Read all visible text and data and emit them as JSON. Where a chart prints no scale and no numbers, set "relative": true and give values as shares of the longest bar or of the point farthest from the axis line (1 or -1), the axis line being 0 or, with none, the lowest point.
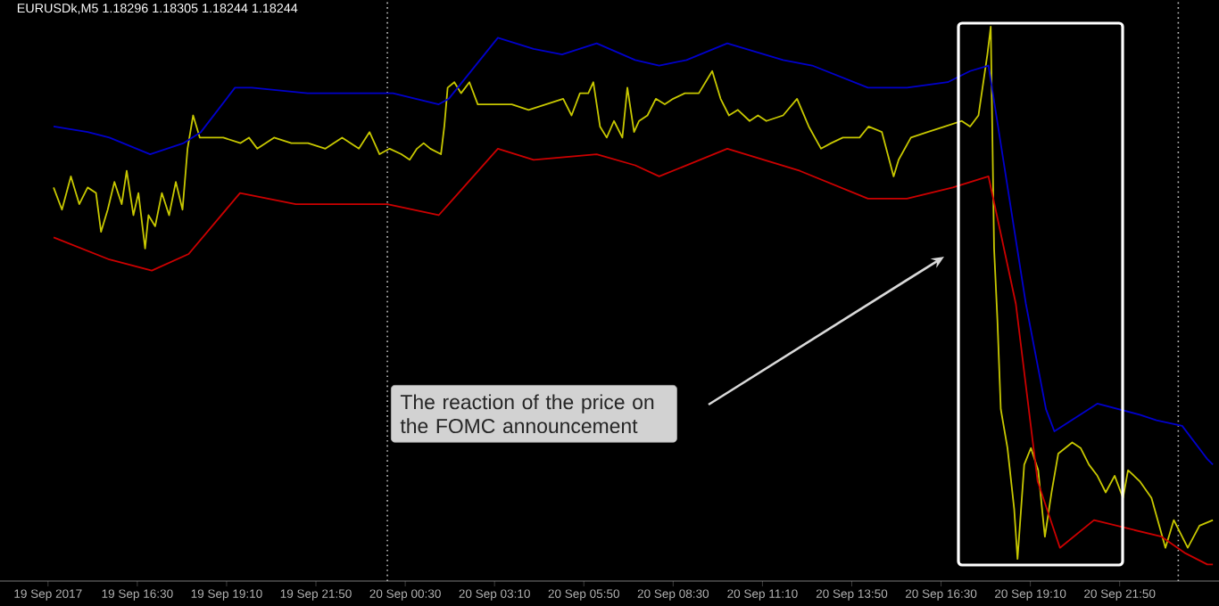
{
  "chart_data": {
    "type": "line",
    "title": "EURUSDk,M5  1.18296 1.18305 1.18244 1.18244",
    "relative": true,
    "marker": "none",
    "line_style": "solid",
    "xlim": [
      "2017-09-19T12:24",
      "2017-09-21T00:48"
    ],
    "xticks": [
      {
        "value": "2017-09-19T13:50",
        "label": "19 Sep 2017"
      },
      {
        "value": "2017-09-19T16:30",
        "label": "19 Sep 16:30"
      },
      {
        "value": "2017-09-19T19:10",
        "label": "19 Sep 19:10"
      },
      {
        "value": "2017-09-19T21:50",
        "label": "19 Sep 21:50"
      },
      {
        "value": "2017-09-20T00:30",
        "label": "20 Sep 00:30"
      },
      {
        "value": "2017-09-20T03:10",
        "label": "20 Sep 03:10"
      },
      {
        "value": "2017-09-20T05:50",
        "label": "20 Sep 05:50"
      },
      {
        "value": "2017-09-20T08:30",
        "label": "20 Sep 08:30"
      },
      {
        "value": "2017-09-20T11:10",
        "label": "20 Sep 11:10"
      },
      {
        "value": "2017-09-20T13:50",
        "label": "20 Sep 13:50"
      },
      {
        "value": "2017-09-20T16:30",
        "label": "20 Sep 16:30"
      },
      {
        "value": "2017-09-20T19:10",
        "label": "20 Sep 19:10"
      },
      {
        "value": "2017-09-20T21:50",
        "label": "20 Sep 21:50"
      }
    ],
    "series": [
      {
        "color": "#c8c800",
        "x": [
          "2017-09-19T14:00",
          "2017-09-19T14:15",
          "2017-09-19T14:31",
          "2017-09-19T14:46",
          "2017-09-19T15:01",
          "2017-09-19T15:16",
          "2017-09-19T15:25",
          "2017-09-19T15:37",
          "2017-09-19T15:49",
          "2017-09-19T16:02",
          "2017-09-19T16:11",
          "2017-09-19T16:23",
          "2017-09-19T16:32",
          "2017-09-19T16:44",
          "2017-09-19T16:50",
          "2017-09-19T17:02",
          "2017-09-19T17:14",
          "2017-09-19T17:27",
          "2017-09-19T17:39",
          "2017-09-19T17:51",
          "2017-09-19T18:00",
          "2017-09-19T18:10",
          "2017-09-19T18:22",
          "2017-09-19T18:34",
          "2017-09-19T18:49",
          "2017-09-19T19:04",
          "2017-09-19T19:35",
          "2017-09-19T19:50",
          "2017-09-19T20:05",
          "2017-09-19T20:35",
          "2017-09-19T21:06",
          "2017-09-19T21:36",
          "2017-09-19T22:07",
          "2017-09-19T22:37",
          "2017-09-19T23:07",
          "2017-09-19T23:26",
          "2017-09-19T23:44",
          "2017-09-20T00:02",
          "2017-09-20T00:23",
          "2017-09-20T00:38",
          "2017-09-20T00:51",
          "2017-09-20T01:03",
          "2017-09-20T01:15",
          "2017-09-20T01:34",
          "2017-09-20T01:40",
          "2017-09-20T01:46",
          "2017-09-20T01:58",
          "2017-09-20T02:10",
          "2017-09-20T02:25",
          "2017-09-20T02:40",
          "2017-09-20T03:11",
          "2017-09-20T03:41",
          "2017-09-20T04:11",
          "2017-09-20T04:42",
          "2017-09-20T05:13",
          "2017-09-20T05:28",
          "2017-09-20T05:43",
          "2017-09-20T05:58",
          "2017-09-20T06:07",
          "2017-09-20T06:19",
          "2017-09-20T06:31",
          "2017-09-20T06:44",
          "2017-09-20T06:59",
          "2017-09-20T07:08",
          "2017-09-20T07:20",
          "2017-09-20T07:29",
          "2017-09-20T07:44",
          "2017-09-20T07:59",
          "2017-09-20T08:15",
          "2017-09-20T08:30",
          "2017-09-20T08:51",
          "2017-09-20T09:16",
          "2017-09-20T09:40",
          "2017-09-20T09:55",
          "2017-09-20T10:10",
          "2017-09-20T10:26",
          "2017-09-20T10:47",
          "2017-09-20T11:02",
          "2017-09-20T11:17",
          "2017-09-20T11:47",
          "2017-09-20T12:12",
          "2017-09-20T12:33",
          "2017-09-20T12:55",
          "2017-09-20T13:13",
          "2017-09-20T13:34",
          "2017-09-20T13:49",
          "2017-09-20T14:04",
          "2017-09-20T14:20",
          "2017-09-20T14:44",
          "2017-09-20T15:05",
          "2017-09-20T15:14",
          "2017-09-20T15:36",
          "2017-09-20T16:06",
          "2017-09-20T16:37",
          "2017-09-20T17:07",
          "2017-09-20T17:22",
          "2017-09-20T17:37",
          "2017-09-20T17:53",
          "2017-09-20T17:59",
          "2017-09-20T18:05",
          "2017-09-20T18:11",
          "2017-09-20T18:17",
          "2017-09-20T18:29",
          "2017-09-20T18:41",
          "2017-09-20T18:47",
          "2017-09-20T18:59",
          "2017-09-20T19:11",
          "2017-09-20T19:24",
          "2017-09-20T19:36",
          "2017-09-20T19:48",
          "2017-09-20T20:00",
          "2017-09-20T20:25",
          "2017-09-20T20:40",
          "2017-09-20T20:55",
          "2017-09-20T21:10",
          "2017-09-20T21:25",
          "2017-09-20T21:41",
          "2017-09-20T21:56",
          "2017-09-20T22:05",
          "2017-09-20T22:26",
          "2017-09-20T22:47",
          "2017-09-20T23:12",
          "2017-09-20T23:27",
          "2017-09-20T23:52",
          "2017-09-21T00:13",
          "2017-09-21T00:37"
        ],
        "values": [
          0.71,
          0.67,
          0.73,
          0.68,
          0.71,
          0.7,
          0.63,
          0.67,
          0.72,
          0.68,
          0.74,
          0.66,
          0.7,
          0.6,
          0.66,
          0.64,
          0.7,
          0.66,
          0.72,
          0.67,
          0.78,
          0.84,
          0.8,
          0.8,
          0.8,
          0.8,
          0.79,
          0.8,
          0.78,
          0.8,
          0.79,
          0.79,
          0.78,
          0.8,
          0.78,
          0.81,
          0.77,
          0.78,
          0.77,
          0.76,
          0.78,
          0.79,
          0.78,
          0.77,
          0.82,
          0.89,
          0.9,
          0.88,
          0.9,
          0.86,
          0.86,
          0.86,
          0.85,
          0.86,
          0.87,
          0.84,
          0.88,
          0.88,
          0.9,
          0.82,
          0.8,
          0.83,
          0.8,
          0.89,
          0.81,
          0.83,
          0.84,
          0.87,
          0.86,
          0.87,
          0.88,
          0.88,
          0.92,
          0.87,
          0.84,
          0.85,
          0.83,
          0.84,
          0.83,
          0.84,
          0.87,
          0.82,
          0.78,
          0.79,
          0.8,
          0.8,
          0.8,
          0.82,
          0.81,
          0.73,
          0.76,
          0.8,
          0.81,
          0.82,
          0.83,
          0.82,
          0.84,
          0.95,
          1.0,
          0.6,
          0.47,
          0.31,
          0.24,
          0.13,
          0.04,
          0.21,
          0.24,
          0.2,
          0.08,
          0.16,
          0.23,
          0.25,
          0.24,
          0.21,
          0.19,
          0.16,
          0.19,
          0.15,
          0.2,
          0.18,
          0.15,
          0.06,
          0.11,
          0.06,
          0.1,
          0.11
        ]
      },
      {
        "color": "#0000cc",
        "x": [
          "2017-09-19T14:00",
          "2017-09-19T15:01",
          "2017-09-19T15:40",
          "2017-09-19T16:53",
          "2017-09-19T17:53",
          "2017-09-19T18:24",
          "2017-09-19T19:25",
          "2017-09-19T19:55",
          "2017-09-19T21:35",
          "2017-09-19T23:28",
          "2017-09-20T00:08",
          "2017-09-20T01:30",
          "2017-09-20T01:48",
          "2017-09-20T03:16",
          "2017-09-20T04:20",
          "2017-09-20T05:11",
          "2017-09-20T06:13",
          "2017-09-20T07:22",
          "2017-09-20T08:05",
          "2017-09-20T08:54",
          "2017-09-20T10:07",
          "2017-09-20T11:47",
          "2017-09-20T12:39",
          "2017-09-20T14:19",
          "2017-09-20T15:29",
          "2017-09-20T16:42",
          "2017-09-20T17:22",
          "2017-09-20T17:55",
          "2017-09-20T19:02",
          "2017-09-20T19:38",
          "2017-09-20T19:53",
          "2017-09-20T20:24",
          "2017-09-20T21:10",
          "2017-09-20T22:26",
          "2017-09-20T22:56",
          "2017-09-20T23:42",
          "2017-09-21T00:27",
          "2017-09-21T00:37"
        ],
        "values": [
          0.82,
          0.81,
          0.8,
          0.77,
          0.79,
          0.81,
          0.89,
          0.89,
          0.88,
          0.88,
          0.88,
          0.86,
          0.87,
          0.98,
          0.96,
          0.95,
          0.97,
          0.94,
          0.93,
          0.94,
          0.97,
          0.94,
          0.93,
          0.89,
          0.89,
          0.9,
          0.92,
          0.93,
          0.5,
          0.31,
          0.27,
          0.29,
          0.32,
          0.3,
          0.29,
          0.28,
          0.22,
          0.21
        ]
      },
      {
        "color": "#cc0000",
        "x": [
          "2017-09-19T14:00",
          "2017-09-19T15:40",
          "2017-09-19T16:56",
          "2017-09-19T18:02",
          "2017-09-19T19:34",
          "2017-09-19T21:14",
          "2017-09-19T23:16",
          "2017-09-19T23:58",
          "2017-09-20T01:30",
          "2017-09-20T03:16",
          "2017-09-20T04:20",
          "2017-09-20T06:13",
          "2017-09-20T07:22",
          "2017-09-20T08:05",
          "2017-09-20T10:07",
          "2017-09-20T12:17",
          "2017-09-20T14:19",
          "2017-09-20T15:29",
          "2017-09-20T16:51",
          "2017-09-20T17:55",
          "2017-09-20T18:44",
          "2017-09-20T19:23",
          "2017-09-20T20:03",
          "2017-09-20T21:04",
          "2017-09-20T23:05",
          "2017-09-20T23:48",
          "2017-09-21T00:27",
          "2017-09-21T00:37"
        ],
        "values": [
          0.62,
          0.58,
          0.56,
          0.59,
          0.7,
          0.68,
          0.68,
          0.68,
          0.66,
          0.78,
          0.76,
          0.77,
          0.75,
          0.73,
          0.78,
          0.74,
          0.69,
          0.69,
          0.71,
          0.73,
          0.5,
          0.18,
          0.06,
          0.11,
          0.08,
          0.05,
          0.03,
          0.03
        ]
      }
    ],
    "ref_lines": [
      {
        "axis": "x",
        "value": "2017-09-19T23:58",
        "color": "#c0c0c0",
        "line_style": "dotted"
      },
      {
        "axis": "x",
        "value": "2017-09-20T23:35",
        "color": "#c0c0c0",
        "line_style": "dotted"
      }
    ],
    "annotations": [
      "The reaction of the price on the FOMC announcement"
    ]
  }
}
